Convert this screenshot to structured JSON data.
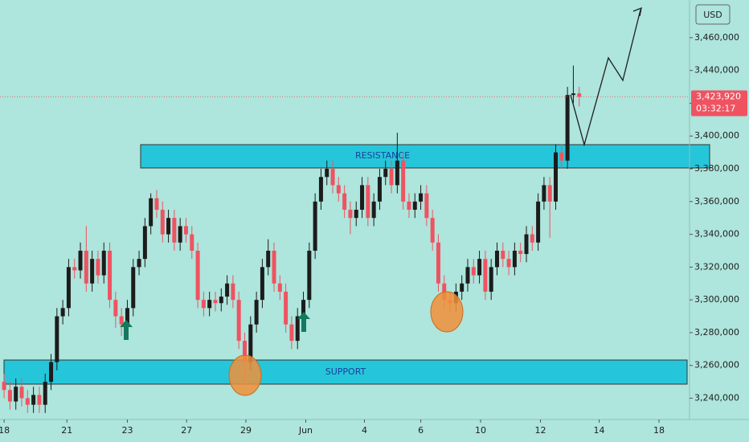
{
  "chart_data": {
    "type": "candlestick",
    "currency": "USD",
    "last_price": 3423920,
    "last_price_label": "3,423,920",
    "countdown": "03:32:17",
    "annotations": {
      "resistance": "RESISTANCE",
      "support": "SUPPORT"
    },
    "up_color": "#1c1c1c",
    "down_color": "#ef5361",
    "ylim": [
      3227000,
      3483000
    ],
    "yticks": [
      {
        "value": 3240000,
        "label": "3,240,000"
      },
      {
        "value": 3260000,
        "label": "3,260,000"
      },
      {
        "value": 3280000,
        "label": "3,280,000"
      },
      {
        "value": 3300000,
        "label": "3,300,000"
      },
      {
        "value": 3320000,
        "label": "3,320,000"
      },
      {
        "value": 3340000,
        "label": "3,340,000"
      },
      {
        "value": 3360000,
        "label": "3,360,000"
      },
      {
        "value": 3380000,
        "label": "3,380,000"
      },
      {
        "value": 3400000,
        "label": "3,400,000"
      },
      {
        "value": 3420000,
        "label": "3,420,000"
      },
      {
        "value": 3440000,
        "label": "3,440,000"
      },
      {
        "value": 3460000,
        "label": "3,460,000"
      }
    ],
    "xlim": [
      -0.7,
      116.8
    ],
    "xticks": [
      {
        "value": 0,
        "label": "18"
      },
      {
        "value": 10.7,
        "label": "21"
      },
      {
        "value": 21,
        "label": "23"
      },
      {
        "value": 31.1,
        "label": "27"
      },
      {
        "value": 41.2,
        "label": "29"
      },
      {
        "value": 51.4,
        "label": "Jun"
      },
      {
        "value": 61.4,
        "label": "4"
      },
      {
        "value": 71,
        "label": "6"
      },
      {
        "value": 81.2,
        "label": "10"
      },
      {
        "value": 91.4,
        "label": "12"
      },
      {
        "value": 101.4,
        "label": "14"
      },
      {
        "value": 111.6,
        "label": "18"
      }
    ],
    "candles": [
      [
        3250000,
        3255000,
        3240000,
        3245000
      ],
      [
        3245000,
        3250000,
        3233000,
        3238000
      ],
      [
        3238000,
        3252000,
        3233000,
        3247000
      ],
      [
        3247000,
        3252000,
        3235000,
        3240000
      ],
      [
        3240000,
        3245000,
        3231000,
        3236000
      ],
      [
        3236000,
        3247000,
        3231000,
        3242000
      ],
      [
        3242000,
        3247000,
        3231000,
        3236000
      ],
      [
        3236000,
        3255000,
        3231000,
        3250000
      ],
      [
        3250000,
        3267000,
        3245000,
        3262000
      ],
      [
        3262000,
        3295000,
        3257000,
        3290000
      ],
      [
        3290000,
        3300000,
        3285000,
        3295000
      ],
      [
        3295000,
        3325000,
        3290000,
        3320000
      ],
      [
        3320000,
        3325000,
        3313000,
        3318000
      ],
      [
        3318000,
        3335000,
        3313000,
        3330000
      ],
      [
        3330000,
        3345000,
        3305000,
        3310000
      ],
      [
        3310000,
        3330000,
        3305000,
        3325000
      ],
      [
        3325000,
        3330000,
        3310000,
        3315000
      ],
      [
        3315000,
        3335000,
        3310000,
        3330000
      ],
      [
        3330000,
        3335000,
        3295000,
        3300000
      ],
      [
        3300000,
        3305000,
        3283000,
        3290000
      ],
      [
        3290000,
        3295000,
        3278000,
        3285000
      ],
      [
        3285000,
        3300000,
        3280000,
        3295000
      ],
      [
        3295000,
        3325000,
        3290000,
        3320000
      ],
      [
        3320000,
        3330000,
        3315000,
        3325000
      ],
      [
        3325000,
        3350000,
        3320000,
        3345000
      ],
      [
        3345000,
        3365000,
        3340000,
        3362000
      ],
      [
        3362000,
        3367000,
        3350000,
        3355000
      ],
      [
        3355000,
        3360000,
        3335000,
        3340000
      ],
      [
        3340000,
        3355000,
        3335000,
        3350000
      ],
      [
        3350000,
        3355000,
        3330000,
        3335000
      ],
      [
        3335000,
        3350000,
        3330000,
        3345000
      ],
      [
        3345000,
        3350000,
        3335000,
        3340000
      ],
      [
        3340000,
        3345000,
        3325000,
        3330000
      ],
      [
        3330000,
        3335000,
        3295000,
        3300000
      ],
      [
        3300000,
        3305000,
        3290000,
        3295000
      ],
      [
        3295000,
        3305000,
        3290000,
        3300000
      ],
      [
        3300000,
        3305000,
        3293000,
        3298000
      ],
      [
        3298000,
        3307000,
        3293000,
        3302000
      ],
      [
        3302000,
        3315000,
        3297000,
        3310000
      ],
      [
        3310000,
        3315000,
        3295000,
        3300000
      ],
      [
        3300000,
        3305000,
        3270000,
        3275000
      ],
      [
        3275000,
        3280000,
        3250000,
        3262000
      ],
      [
        3262000,
        3290000,
        3257000,
        3285000
      ],
      [
        3285000,
        3305000,
        3280000,
        3300000
      ],
      [
        3300000,
        3325000,
        3295000,
        3320000
      ],
      [
        3320000,
        3337000,
        3315000,
        3330000
      ],
      [
        3330000,
        3335000,
        3305000,
        3310000
      ],
      [
        3310000,
        3315000,
        3300000,
        3305000
      ],
      [
        3305000,
        3310000,
        3280000,
        3285000
      ],
      [
        3285000,
        3290000,
        3270000,
        3275000
      ],
      [
        3275000,
        3295000,
        3270000,
        3290000
      ],
      [
        3290000,
        3305000,
        3285000,
        3300000
      ],
      [
        3300000,
        3335000,
        3295000,
        3330000
      ],
      [
        3330000,
        3365000,
        3325000,
        3360000
      ],
      [
        3360000,
        3380000,
        3355000,
        3375000
      ],
      [
        3375000,
        3385000,
        3370000,
        3380000
      ],
      [
        3380000,
        3385000,
        3365000,
        3370000
      ],
      [
        3370000,
        3375000,
        3360000,
        3365000
      ],
      [
        3365000,
        3370000,
        3350000,
        3355000
      ],
      [
        3355000,
        3360000,
        3340000,
        3350000
      ],
      [
        3350000,
        3360000,
        3345000,
        3355000
      ],
      [
        3355000,
        3375000,
        3350000,
        3370000
      ],
      [
        3370000,
        3375000,
        3345000,
        3350000
      ],
      [
        3350000,
        3365000,
        3345000,
        3360000
      ],
      [
        3360000,
        3380000,
        3355000,
        3375000
      ],
      [
        3375000,
        3385000,
        3370000,
        3380000
      ],
      [
        3380000,
        3385000,
        3365000,
        3370000
      ],
      [
        3370000,
        3402000,
        3365000,
        3385000
      ],
      [
        3385000,
        3390000,
        3355000,
        3360000
      ],
      [
        3360000,
        3365000,
        3350000,
        3355000
      ],
      [
        3355000,
        3365000,
        3350000,
        3360000
      ],
      [
        3360000,
        3370000,
        3355000,
        3365000
      ],
      [
        3365000,
        3370000,
        3345000,
        3350000
      ],
      [
        3350000,
        3355000,
        3330000,
        3335000
      ],
      [
        3335000,
        3340000,
        3305000,
        3310000
      ],
      [
        3310000,
        3315000,
        3295000,
        3300000
      ],
      [
        3300000,
        3305000,
        3293000,
        3298000
      ],
      [
        3298000,
        3310000,
        3293000,
        3305000
      ],
      [
        3305000,
        3315000,
        3300000,
        3310000
      ],
      [
        3310000,
        3325000,
        3305000,
        3320000
      ],
      [
        3320000,
        3325000,
        3310000,
        3315000
      ],
      [
        3315000,
        3330000,
        3310000,
        3325000
      ],
      [
        3325000,
        3330000,
        3300000,
        3305000
      ],
      [
        3305000,
        3325000,
        3300000,
        3320000
      ],
      [
        3320000,
        3335000,
        3315000,
        3330000
      ],
      [
        3330000,
        3335000,
        3320000,
        3325000
      ],
      [
        3325000,
        3330000,
        3315000,
        3320000
      ],
      [
        3320000,
        3335000,
        3315000,
        3330000
      ],
      [
        3330000,
        3335000,
        3323000,
        3328000
      ],
      [
        3328000,
        3345000,
        3323000,
        3340000
      ],
      [
        3340000,
        3345000,
        3330000,
        3335000
      ],
      [
        3335000,
        3365000,
        3330000,
        3360000
      ],
      [
        3360000,
        3375000,
        3355000,
        3370000
      ],
      [
        3370000,
        3375000,
        3338000,
        3360000
      ],
      [
        3360000,
        3395000,
        3355000,
        3390000
      ],
      [
        3390000,
        3395000,
        3380000,
        3385000
      ],
      [
        3385000,
        3430000,
        3380000,
        3425000
      ],
      [
        3425000,
        3443000,
        3420000,
        3426000
      ],
      [
        3426000,
        3430000,
        3418000,
        3423920
      ]
    ]
  }
}
